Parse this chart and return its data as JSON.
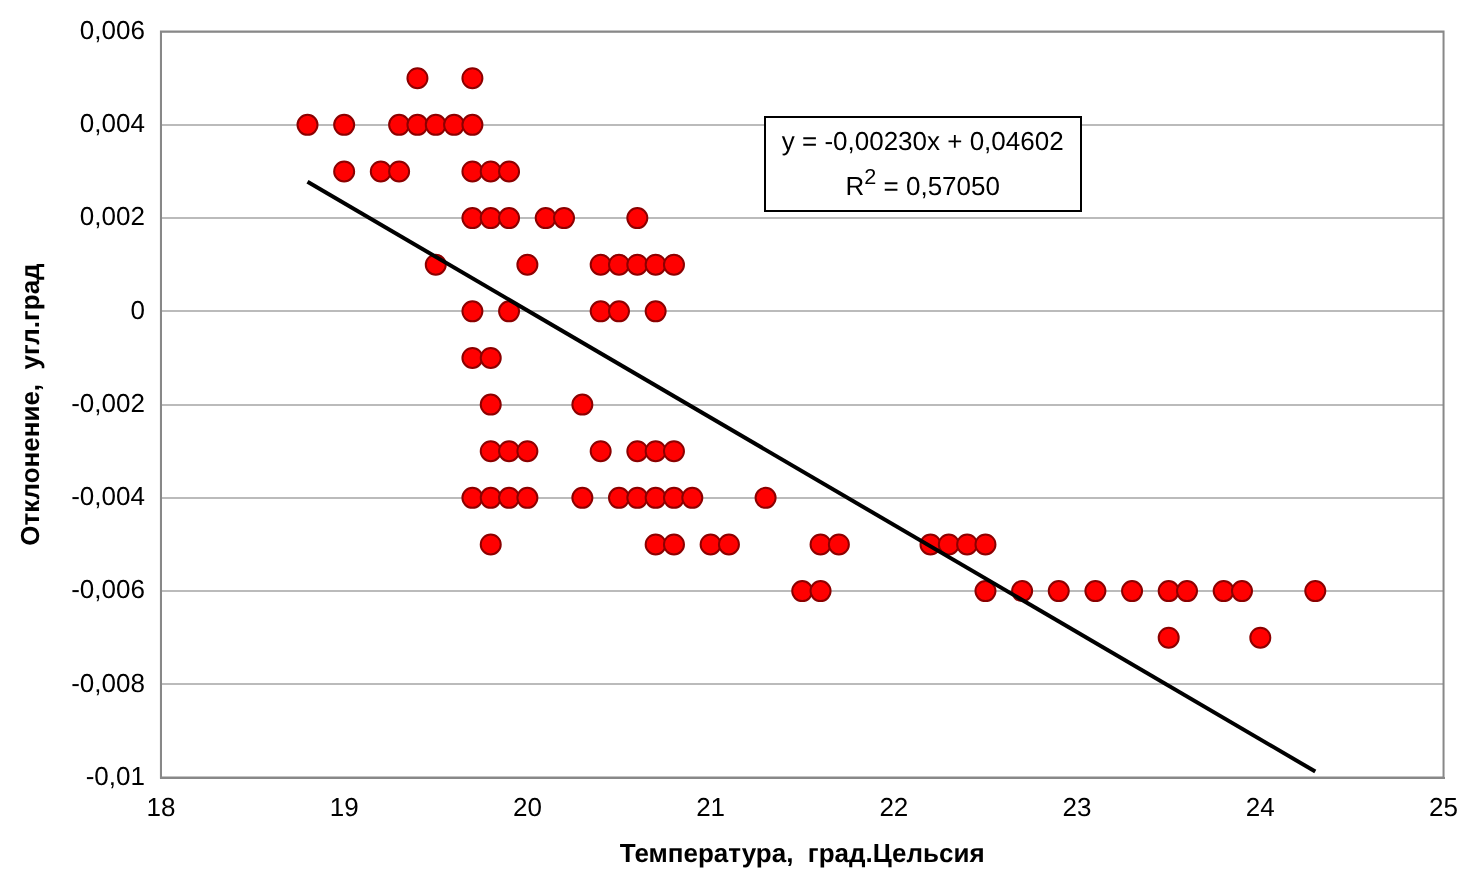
{
  "chart_data": {
    "type": "scatter",
    "xlabel": "Температура,  град.Цельсия",
    "ylabel": "Отклонение,  угл.град",
    "annotations": [
      "y = -0,00230x + 0,04602",
      "R$^{2}$ = 0,57050"
    ],
    "xlim": [
      18,
      25
    ],
    "xticks": [
      18,
      19,
      20,
      21,
      22,
      23,
      24,
      25
    ],
    "ylim": [
      -0.01,
      0.006
    ],
    "yticks": [
      {
        "value": -0.01,
        "label": "-0,01"
      },
      {
        "value": -0.008,
        "label": "-0,008"
      },
      {
        "value": -0.006,
        "label": "-0,006"
      },
      {
        "value": -0.004,
        "label": "-0,004"
      },
      {
        "value": -0.002,
        "label": "-0,002"
      },
      0,
      {
        "value": 0.002,
        "label": "0,002"
      },
      {
        "value": 0.004,
        "label": "0,004"
      },
      {
        "value": 0.006,
        "label": "0,006"
      }
    ],
    "grid": "y",
    "legend": false,
    "series": [
      {
        "type": "scatter",
        "marker": "circle",
        "color": "#ff0000",
        "x": [
          19.4,
          19.7,
          18.8,
          19.0,
          19.3,
          19.4,
          19.5,
          19.6,
          19.7,
          19.0,
          19.2,
          19.3,
          19.7,
          19.8,
          19.9,
          19.7,
          19.8,
          19.9,
          20.1,
          20.2,
          20.6,
          19.5,
          20.0,
          20.4,
          20.5,
          20.6,
          20.7,
          20.8,
          19.7,
          19.9,
          20.4,
          20.5,
          20.7,
          19.7,
          19.8,
          19.8,
          20.3,
          19.8,
          19.9,
          20.0,
          20.4,
          20.6,
          20.7,
          20.8,
          19.7,
          19.8,
          19.9,
          20.0,
          20.3,
          20.5,
          20.6,
          20.7,
          20.8,
          20.9,
          21.3,
          19.8,
          20.7,
          20.8,
          21.0,
          21.1,
          21.6,
          21.7,
          22.2,
          22.3,
          22.4,
          22.5,
          21.5,
          21.6,
          22.5,
          22.7,
          22.9,
          23.1,
          23.3,
          23.5,
          23.6,
          23.8,
          23.9,
          24.3,
          23.5,
          24.0
        ],
        "values": [
          0.005,
          0.005,
          0.004,
          0.004,
          0.004,
          0.004,
          0.004,
          0.004,
          0.004,
          0.003,
          0.003,
          0.003,
          0.003,
          0.003,
          0.003,
          0.002,
          0.002,
          0.002,
          0.002,
          0.002,
          0.002,
          0.001,
          0.001,
          0.001,
          0.001,
          0.001,
          0.001,
          0.001,
          0,
          0,
          0,
          0,
          0,
          -0.001,
          -0.001,
          -0.002,
          -0.002,
          -0.003,
          -0.003,
          -0.003,
          -0.003,
          -0.003,
          -0.003,
          -0.003,
          -0.004,
          -0.004,
          -0.004,
          -0.004,
          -0.004,
          -0.004,
          -0.004,
          -0.004,
          -0.004,
          -0.004,
          -0.004,
          -0.005,
          -0.005,
          -0.005,
          -0.005,
          -0.005,
          -0.005,
          -0.005,
          -0.005,
          -0.005,
          -0.005,
          -0.005,
          -0.006,
          -0.006,
          -0.006,
          -0.006,
          -0.006,
          -0.006,
          -0.006,
          -0.006,
          -0.006,
          -0.006,
          -0.006,
          -0.006,
          -0.007,
          -0.007
        ]
      },
      {
        "type": "line",
        "marker": "none",
        "color": "#000000",
        "x": [
          18.8,
          24.3
        ],
        "values": [
          0.00278,
          -0.00987
        ]
      }
    ]
  }
}
